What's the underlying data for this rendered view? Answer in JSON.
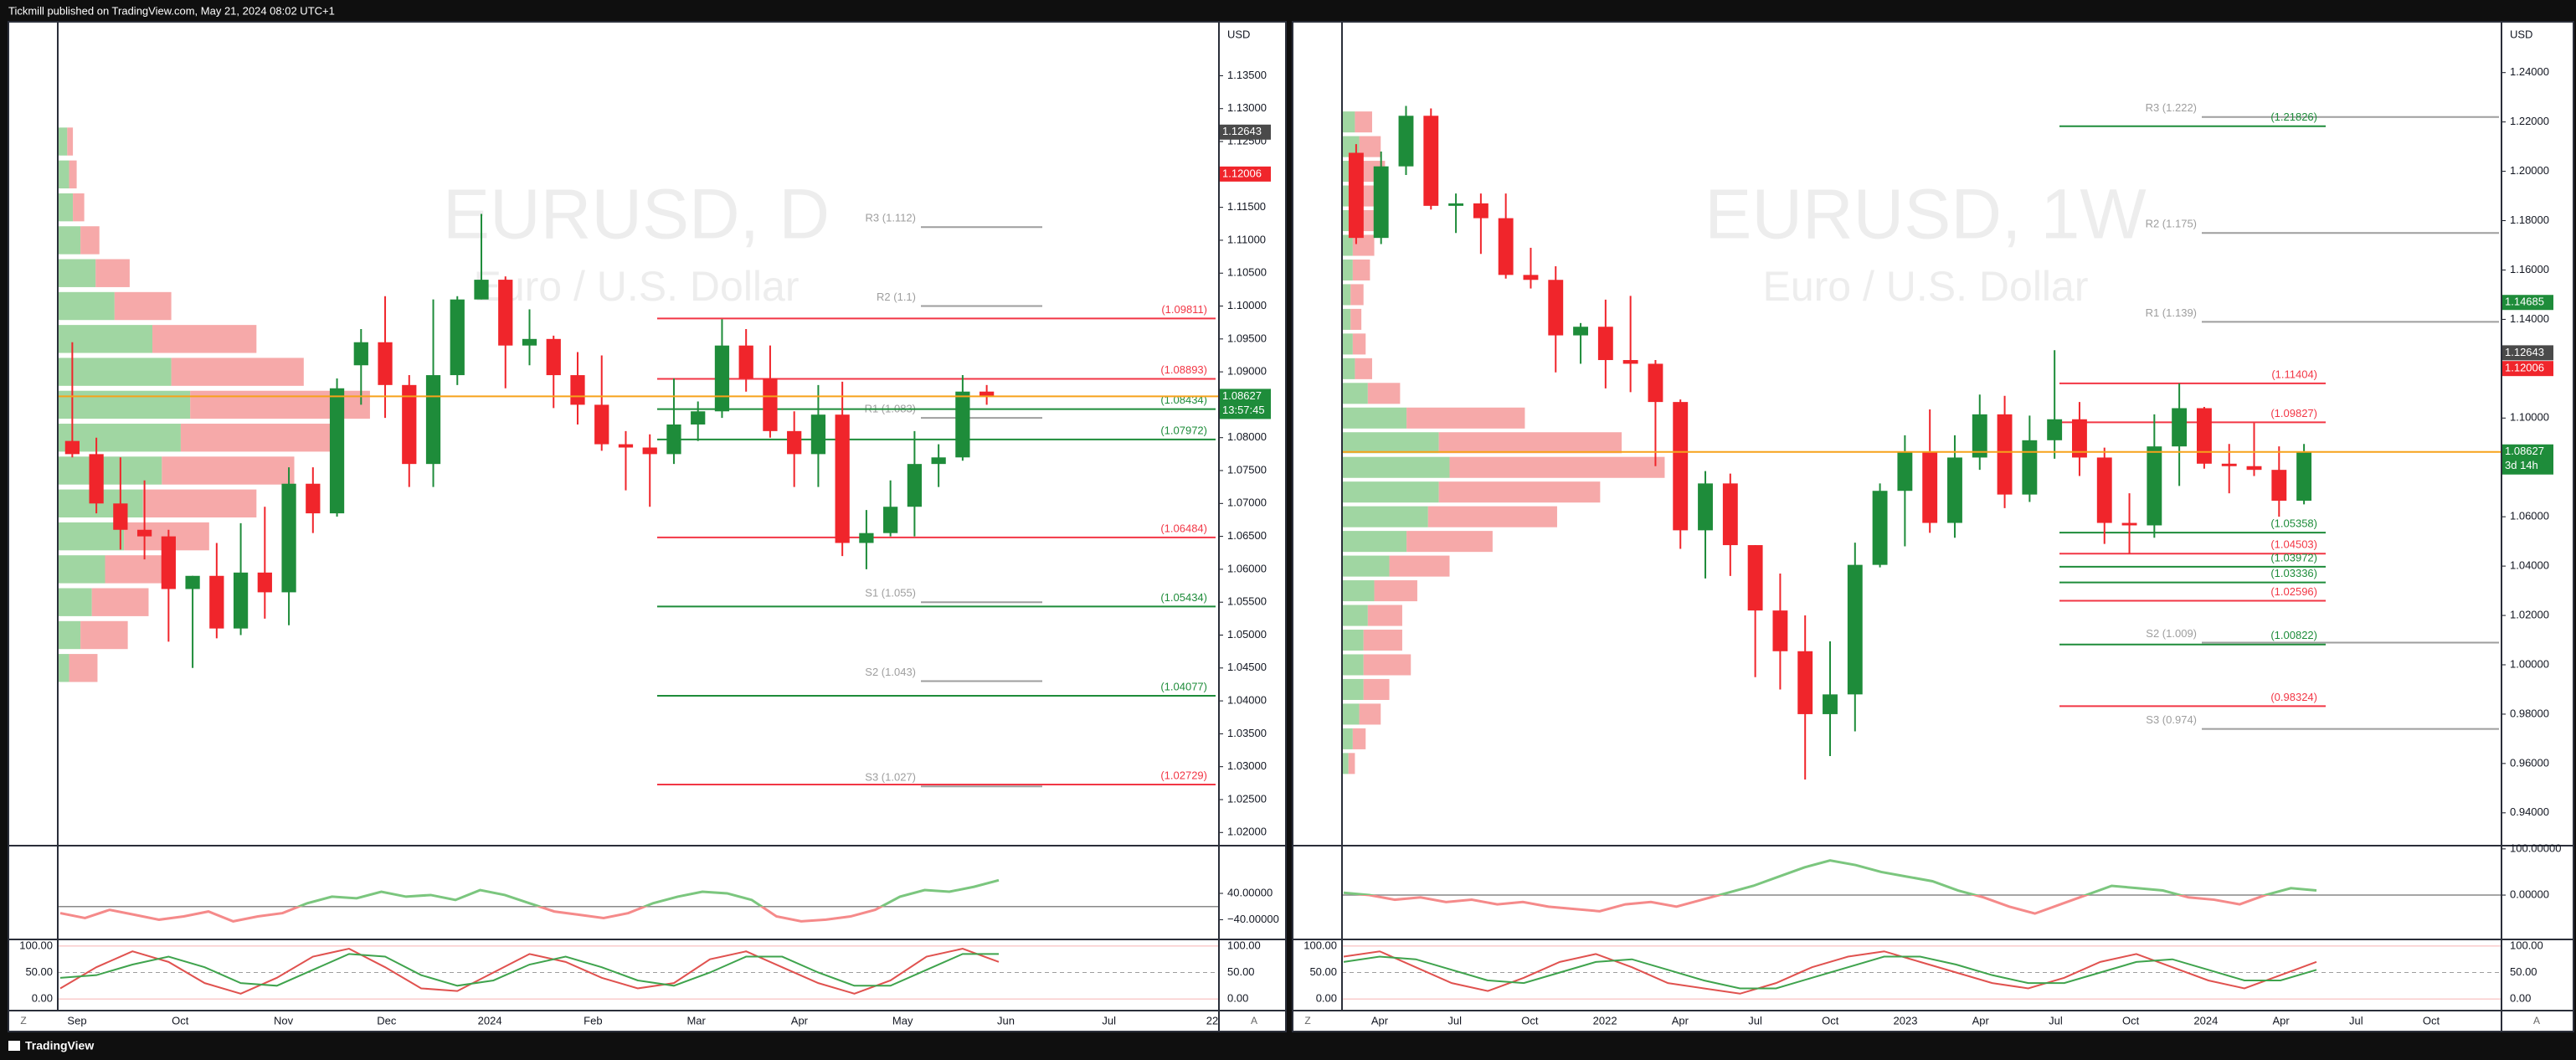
{
  "header": {
    "title": "Tickmill published on TradingView.com, May 21, 2024 08:02 UTC+1"
  },
  "footer": {
    "brand": "TradingView"
  },
  "chart_data": [
    {
      "type": "candlestick",
      "title": "EURUSD, D",
      "subtitle": "Euro / U.S. Dollar",
      "currency": "USD",
      "open": [
        1.0795,
        1.0775,
        1.07,
        1.066,
        1.065,
        1.057,
        1.059,
        1.051,
        1.0595,
        1.0565,
        1.073,
        1.0685,
        1.091,
        1.0945,
        1.088,
        1.076,
        1.0895,
        1.101,
        1.104,
        1.094,
        1.095,
        1.0895,
        1.085,
        1.079,
        1.0785,
        1.0775,
        1.082,
        1.084,
        1.094,
        1.089,
        1.081,
        1.0775,
        1.0835,
        1.064,
        1.0655,
        1.0695,
        1.076,
        1.077,
        1.087
      ],
      "high": [
        1.0945,
        1.08,
        1.077,
        1.0735,
        1.066,
        1.059,
        1.064,
        1.067,
        1.0695,
        1.0755,
        1.0755,
        1.089,
        1.0965,
        1.1015,
        1.0895,
        1.101,
        1.1015,
        1.114,
        1.1045,
        1.0995,
        1.0955,
        1.093,
        1.0925,
        1.081,
        1.0805,
        1.089,
        1.0855,
        1.098,
        1.0965,
        1.094,
        1.084,
        1.088,
        1.0885,
        1.069,
        1.0735,
        1.081,
        1.079,
        1.0895,
        1.088
      ],
      "low": [
        1.077,
        1.0685,
        1.063,
        1.0615,
        1.049,
        1.045,
        1.0495,
        1.05,
        1.0525,
        1.0515,
        1.0655,
        1.068,
        1.085,
        1.083,
        1.0725,
        1.0725,
        1.088,
        1.101,
        1.0875,
        1.091,
        1.0845,
        1.082,
        1.078,
        1.072,
        1.0695,
        1.076,
        1.0795,
        1.083,
        1.087,
        1.08,
        1.0725,
        1.0725,
        1.062,
        1.06,
        1.065,
        1.065,
        1.0725,
        1.0765,
        1.085
      ],
      "close": [
        1.0775,
        1.07,
        1.066,
        1.065,
        1.057,
        1.059,
        1.051,
        1.0595,
        1.0565,
        1.073,
        1.0685,
        1.0875,
        1.0945,
        1.088,
        1.076,
        1.0895,
        1.101,
        1.104,
        1.094,
        1.095,
        1.0895,
        1.085,
        1.079,
        1.0785,
        1.0775,
        1.082,
        1.084,
        1.094,
        1.089,
        1.081,
        1.0775,
        1.0835,
        1.064,
        1.0655,
        1.0695,
        1.076,
        1.077,
        1.087,
        1.0863
      ],
      "up_color": "#1e8c3a",
      "down_color": "#f0252b",
      "ylim": [
        1.018,
        1.1432
      ],
      "yticks": [
        {
          "value": 1.135,
          "label": "1.13500"
        },
        {
          "value": 1.13,
          "label": "1.13000"
        },
        {
          "value": 1.125,
          "label": "1.12500"
        },
        {
          "value": 1.12,
          "label": "1.12000"
        },
        {
          "value": 1.115,
          "label": "1.11500"
        },
        {
          "value": 1.11,
          "label": "1.11000"
        },
        {
          "value": 1.105,
          "label": "1.10500"
        },
        {
          "value": 1.1,
          "label": "1.10000"
        },
        {
          "value": 1.095,
          "label": "1.09500"
        },
        {
          "value": 1.09,
          "label": "1.09000"
        },
        {
          "value": 1.085,
          "label": "1.08500"
        },
        {
          "value": 1.08,
          "label": "1.08000"
        },
        {
          "value": 1.075,
          "label": "1.07500"
        },
        {
          "value": 1.07,
          "label": "1.07000"
        },
        {
          "value": 1.065,
          "label": "1.06500"
        },
        {
          "value": 1.06,
          "label": "1.06000"
        },
        {
          "value": 1.055,
          "label": "1.05500"
        },
        {
          "value": 1.05,
          "label": "1.05000"
        },
        {
          "value": 1.045,
          "label": "1.04500"
        },
        {
          "value": 1.04,
          "label": "1.04000"
        },
        {
          "value": 1.035,
          "label": "1.03500"
        },
        {
          "value": 1.03,
          "label": "1.03000"
        },
        {
          "value": 1.025,
          "label": "1.02500"
        },
        {
          "value": 1.02,
          "label": "1.02000"
        }
      ],
      "badges": [
        {
          "value": 1.12643,
          "label": "1.12643",
          "color": "#4a4a4a"
        },
        {
          "value": 1.12006,
          "label": "1.12006",
          "color": "#f0252b"
        },
        {
          "value": 1.08627,
          "label": "1.08627",
          "sub": "13:57:45",
          "color": "#1e8c3a"
        }
      ],
      "levels": [
        {
          "value": 1.112,
          "label": "R3 (1.112)",
          "color": "#9e9e9e"
        },
        {
          "value": 1.1,
          "label": "R2 (1.1)",
          "color": "#9e9e9e"
        },
        {
          "value": 1.09811,
          "label": "(1.09811)",
          "color": "#f23645"
        },
        {
          "value": 1.08893,
          "label": "(1.08893)",
          "color": "#f23645"
        },
        {
          "value": 1.083,
          "label": "R1 (1.083)",
          "color": "#9e9e9e"
        },
        {
          "value": 1.08434,
          "label": "(1.08434)",
          "color": "#1e8c3a"
        },
        {
          "value": 1.07972,
          "label": "(1.07972)",
          "color": "#1e8c3a"
        },
        {
          "value": 1.06484,
          "label": "(1.06484)",
          "color": "#f23645"
        },
        {
          "value": 1.055,
          "label": "S1 (1.055)",
          "color": "#9e9e9e"
        },
        {
          "value": 1.05434,
          "label": "(1.05434)",
          "color": "#1e8c3a"
        },
        {
          "value": 1.043,
          "label": "S2 (1.043)",
          "color": "#9e9e9e"
        },
        {
          "value": 1.04077,
          "label": "(1.04077)",
          "color": "#1e8c3a"
        },
        {
          "value": 1.027,
          "label": "S3 (1.027)",
          "color": "#9e9e9e"
        },
        {
          "value": 1.02729,
          "label": "(1.02729)",
          "color": "#f23645"
        }
      ],
      "volume_profile": {
        "prices": [
          1.125,
          1.12,
          1.115,
          1.11,
          1.105,
          1.1,
          1.095,
          1.09,
          1.085,
          1.08,
          1.075,
          1.07,
          1.065,
          1.06,
          1.055,
          1.05,
          1.045
        ],
        "up": [
          5,
          6,
          8,
          12,
          20,
          30,
          50,
          60,
          70,
          65,
          55,
          45,
          35,
          25,
          18,
          12,
          6
        ],
        "down": [
          3,
          4,
          6,
          10,
          18,
          30,
          55,
          70,
          95,
          80,
          70,
          60,
          45,
          35,
          30,
          25,
          15
        ],
        "up_color": "#8fcf92",
        "down_color": "#f59a9a"
      },
      "oscillator": {
        "values": [
          -20,
          -35,
          -10,
          -25,
          -40,
          -30,
          -15,
          -45,
          -30,
          -20,
          10,
          30,
          25,
          45,
          30,
          35,
          20,
          50,
          35,
          10,
          -15,
          -25,
          -35,
          -20,
          10,
          30,
          45,
          40,
          20,
          -30,
          -45,
          -40,
          -30,
          -10,
          30,
          50,
          45,
          60,
          80
        ],
        "ylim": [
          -100,
          185
        ],
        "yticks": [
          {
            "value": 40,
            "label": "40.00000"
          },
          {
            "value": -40,
            "label": "−40.00000"
          }
        ]
      },
      "stochastic": {
        "k": [
          20,
          60,
          90,
          70,
          30,
          10,
          40,
          80,
          95,
          60,
          20,
          15,
          50,
          85,
          70,
          40,
          20,
          30,
          75,
          90,
          60,
          30,
          10,
          35,
          80,
          95,
          70
        ],
        "d": [
          40,
          45,
          65,
          80,
          60,
          30,
          25,
          55,
          85,
          80,
          45,
          25,
          35,
          65,
          80,
          60,
          35,
          25,
          50,
          80,
          80,
          50,
          25,
          25,
          55,
          85,
          85
        ],
        "ylim": [
          -22,
          112.5
        ],
        "yticks": [
          {
            "value": 100,
            "label": "100.00"
          },
          {
            "value": 50,
            "label": "50.00"
          },
          {
            "value": 0,
            "label": "0.00"
          }
        ]
      },
      "time_labels": [
        "Sep",
        "Oct",
        "Nov",
        "Dec",
        "2024",
        "Feb",
        "Mar",
        "Apr",
        "May",
        "Jun",
        "Jul",
        "22"
      ],
      "corner_buttons": [
        "Z",
        "A"
      ]
    },
    {
      "type": "candlestick",
      "title": "EURUSD, 1W",
      "subtitle": "Euro / U.S. Dollar",
      "currency": "USD",
      "open": [
        1.2075,
        1.173,
        1.202,
        1.2225,
        1.186,
        1.187,
        1.181,
        1.158,
        1.156,
        1.1335,
        1.137,
        1.1235,
        1.122,
        1.1065,
        1.0545,
        1.0735,
        1.0485,
        1.022,
        1.0055,
        0.98,
        0.988,
        1.0405,
        1.0705,
        1.0865,
        1.0575,
        1.084,
        1.1015,
        1.069,
        1.091,
        1.0995,
        1.084,
        1.0575,
        1.0565,
        1.0885,
        1.104,
        1.0815,
        1.0805,
        1.079,
        1.0665
      ],
      "high": [
        1.211,
        1.208,
        1.2265,
        1.2255,
        1.191,
        1.191,
        1.191,
        1.169,
        1.1615,
        1.1385,
        1.148,
        1.1495,
        1.1235,
        1.1075,
        1.0785,
        1.0775,
        1.0485,
        1.037,
        1.02,
        1.0095,
        1.0495,
        1.0735,
        1.093,
        1.1035,
        1.093,
        1.1095,
        1.109,
        1.101,
        1.1275,
        1.1065,
        1.088,
        1.0695,
        1.1015,
        1.114,
        1.1045,
        1.0895,
        1.098,
        1.0885,
        1.0895
      ],
      "low": [
        1.1705,
        1.1705,
        1.1985,
        1.1845,
        1.175,
        1.1665,
        1.1565,
        1.1525,
        1.1185,
        1.122,
        1.112,
        1.1105,
        1.0805,
        1.047,
        1.035,
        1.036,
        0.995,
        0.99,
        0.9535,
        0.963,
        0.973,
        1.0395,
        1.048,
        1.0535,
        1.0515,
        1.079,
        1.0635,
        1.066,
        1.0835,
        1.0765,
        1.049,
        1.045,
        1.0515,
        1.0725,
        1.0795,
        1.0695,
        1.0765,
        1.06,
        1.065
      ],
      "close": [
        1.173,
        1.202,
        1.2225,
        1.186,
        1.187,
        1.181,
        1.158,
        1.156,
        1.1335,
        1.137,
        1.1235,
        1.122,
        1.1065,
        1.0545,
        1.0735,
        1.0485,
        1.022,
        1.0055,
        0.98,
        0.988,
        1.0405,
        1.0705,
        1.0865,
        1.0575,
        1.084,
        1.1015,
        1.069,
        1.091,
        1.0995,
        1.084,
        1.0575,
        1.0565,
        1.0885,
        1.104,
        1.0815,
        1.0805,
        1.079,
        1.0665,
        1.0863
      ],
      "up_color": "#1e8c3a",
      "down_color": "#f0252b",
      "ylim": [
        0.9267,
        1.2606
      ],
      "yticks": [
        {
          "value": 1.24,
          "label": "1.24000"
        },
        {
          "value": 1.22,
          "label": "1.22000"
        },
        {
          "value": 1.2,
          "label": "1.20000"
        },
        {
          "value": 1.18,
          "label": "1.18000"
        },
        {
          "value": 1.16,
          "label": "1.16000"
        },
        {
          "value": 1.14,
          "label": "1.14000"
        },
        {
          "value": 1.12,
          "label": "1.12000"
        },
        {
          "value": 1.1,
          "label": "1.10000"
        },
        {
          "value": 1.08,
          "label": "1.08000"
        },
        {
          "value": 1.06,
          "label": "1.06000"
        },
        {
          "value": 1.04,
          "label": "1.04000"
        },
        {
          "value": 1.02,
          "label": "1.02000"
        },
        {
          "value": 1,
          "label": "1.00000"
        },
        {
          "value": 0.98,
          "label": "0.98000"
        },
        {
          "value": 0.96,
          "label": "0.96000"
        },
        {
          "value": 0.94,
          "label": "0.94000"
        }
      ],
      "badges": [
        {
          "value": 1.14685,
          "label": "1.14685",
          "color": "#1e8c3a"
        },
        {
          "value": 1.12643,
          "label": "1.12643",
          "color": "#4a4a4a"
        },
        {
          "value": 1.12006,
          "label": "1.12006",
          "color": "#f0252b"
        },
        {
          "value": 1.08627,
          "label": "1.08627",
          "sub": "3d 14h",
          "color": "#1e8c3a"
        }
      ],
      "levels": [
        {
          "value": 1.222,
          "label": "R3 (1.222)",
          "color": "#9e9e9e"
        },
        {
          "value": 1.21826,
          "label": "(1.21826)",
          "color": "#1e8c3a"
        },
        {
          "value": 1.175,
          "label": "R2 (1.175)",
          "color": "#9e9e9e"
        },
        {
          "value": 1.139,
          "label": "R1 (1.139)",
          "color": "#9e9e9e"
        },
        {
          "value": 1.11404,
          "label": "(1.11404)",
          "color": "#f23645"
        },
        {
          "value": 1.09827,
          "label": "(1.09827)",
          "color": "#f23645"
        },
        {
          "value": 1.05358,
          "label": "(1.05358)",
          "color": "#1e8c3a"
        },
        {
          "value": 1.04503,
          "label": "(1.04503)",
          "color": "#f23645"
        },
        {
          "value": 1.03972,
          "label": "(1.03972)",
          "color": "#1e8c3a"
        },
        {
          "value": 1.03336,
          "label": "(1.03336)",
          "color": "#1e8c3a"
        },
        {
          "value": 1.02596,
          "label": "(1.02596)",
          "color": "#f23645"
        },
        {
          "value": 1.009,
          "label": "S2 (1.009)",
          "color": "#9e9e9e"
        },
        {
          "value": 1.00822,
          "label": "(1.00822)",
          "color": "#1e8c3a"
        },
        {
          "value": 0.98324,
          "label": "(0.98324)",
          "color": "#f23645"
        },
        {
          "value": 0.974,
          "label": "S3 (0.974)",
          "color": "#9e9e9e"
        }
      ],
      "volume_profile": {
        "prices": [
          1.22,
          1.21,
          1.2,
          1.19,
          1.18,
          1.17,
          1.16,
          1.15,
          1.14,
          1.13,
          1.12,
          1.11,
          1.1,
          1.09,
          1.08,
          1.07,
          1.06,
          1.05,
          1.04,
          1.03,
          1.02,
          1.01,
          1,
          0.99,
          0.98,
          0.97,
          0.96
        ],
        "up": [
          6,
          8,
          8,
          6,
          6,
          5,
          5,
          4,
          4,
          5,
          6,
          12,
          30,
          45,
          50,
          45,
          40,
          30,
          22,
          15,
          12,
          10,
          10,
          10,
          8,
          5,
          3
        ],
        "down": [
          8,
          10,
          12,
          10,
          12,
          10,
          8,
          6,
          5,
          6,
          8,
          15,
          55,
          85,
          100,
          75,
          60,
          40,
          28,
          20,
          16,
          18,
          22,
          12,
          10,
          6,
          3
        ],
        "up_color": "#8fcf92",
        "down_color": "#f59a9a"
      },
      "oscillator": {
        "values": [
          5,
          0,
          -10,
          -5,
          -15,
          -10,
          -20,
          -15,
          -25,
          -30,
          -35,
          -20,
          -15,
          -25,
          -10,
          5,
          20,
          40,
          60,
          75,
          65,
          50,
          40,
          30,
          10,
          -5,
          -25,
          -40,
          -20,
          0,
          20,
          15,
          10,
          -5,
          -10,
          -20,
          0,
          15,
          10
        ],
        "ylim": [
          -96,
          107
        ],
        "yticks": [
          {
            "value": 100,
            "label": "100.00000"
          },
          {
            "value": 0,
            "label": "0.00000"
          }
        ]
      },
      "stochastic": {
        "k": [
          80,
          90,
          60,
          30,
          15,
          40,
          70,
          85,
          60,
          30,
          20,
          10,
          30,
          60,
          80,
          90,
          70,
          50,
          30,
          20,
          40,
          70,
          85,
          60,
          35,
          20,
          45,
          70
        ],
        "d": [
          70,
          80,
          75,
          55,
          35,
          30,
          50,
          70,
          75,
          55,
          35,
          20,
          20,
          40,
          60,
          80,
          80,
          65,
          45,
          30,
          30,
          50,
          70,
          75,
          55,
          35,
          35,
          55
        ],
        "ylim": [
          -22,
          112.5
        ],
        "yticks": [
          {
            "value": 100,
            "label": "100.00"
          },
          {
            "value": 50,
            "label": "50.00"
          },
          {
            "value": 0,
            "label": "0.00"
          }
        ]
      },
      "time_labels": [
        "Apr",
        "Jul",
        "Oct",
        "2022",
        "Apr",
        "Jul",
        "Oct",
        "2023",
        "Apr",
        "Jul",
        "Oct",
        "2024",
        "Apr",
        "Jul",
        "Oct"
      ],
      "corner_buttons": [
        "Z",
        "A"
      ]
    }
  ]
}
